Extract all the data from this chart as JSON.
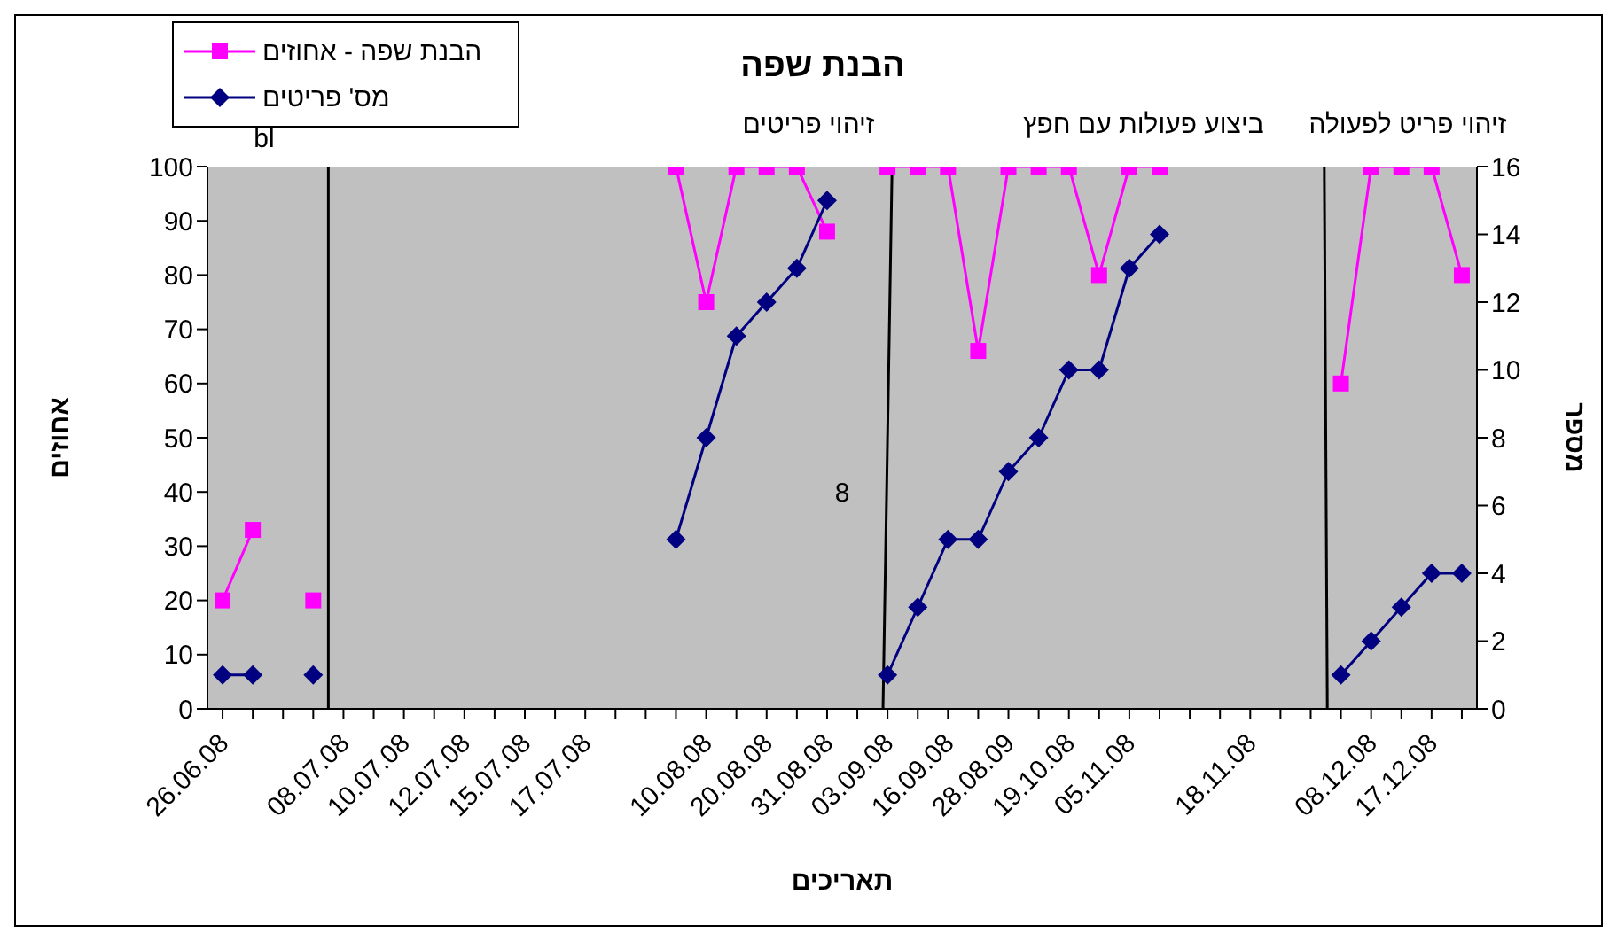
{
  "chart_data": {
    "type": "line",
    "title": "הבנת שפה",
    "xlabel": "תאריכים",
    "ylabel": "אחוזים",
    "y2label": "מספר",
    "categories": [
      "26.06.08",
      null,
      null,
      null,
      "08.07.08",
      null,
      "10.07.08",
      null,
      "12.07.08",
      null,
      "15.07.08",
      null,
      "17.07.08",
      null,
      null,
      null,
      "10.08.08",
      null,
      "20.08.08",
      null,
      "31.08.08",
      null,
      "03.09.08",
      null,
      "16.09.08",
      null,
      "28.08.09",
      null,
      "19.10.08",
      null,
      "05.11.08",
      null,
      null,
      null,
      "18.11.08",
      null,
      null,
      null,
      "08.12.08",
      null,
      "17.12.08",
      null
    ],
    "series": [
      {
        "name": "הבנת שפה - אחוזים",
        "color": "#ff00ff",
        "marker": "square",
        "values": [
          20,
          33,
          null,
          20,
          null,
          null,
          null,
          null,
          null,
          null,
          null,
          null,
          null,
          null,
          null,
          100,
          75,
          100,
          100,
          100,
          88,
          null,
          100,
          100,
          100,
          66,
          100,
          100,
          100,
          80,
          100,
          100,
          null,
          null,
          null,
          null,
          null,
          60,
          100,
          100,
          100,
          80
        ]
      },
      {
        "name": "מס' פריטים",
        "color": "#000080",
        "marker": "diamond",
        "axis": "y2",
        "values": [
          1,
          1,
          null,
          1,
          null,
          null,
          null,
          null,
          null,
          null,
          null,
          null,
          null,
          null,
          null,
          5,
          8,
          11,
          12,
          13,
          15,
          null,
          1,
          3,
          5,
          5,
          7,
          8,
          10,
          10,
          13,
          14,
          null,
          null,
          null,
          null,
          null,
          1,
          2,
          3,
          4,
          4
        ]
      }
    ],
    "ylim": [
      0,
      100
    ],
    "yticks": [
      0,
      10,
      20,
      30,
      40,
      50,
      60,
      70,
      80,
      90,
      100
    ],
    "y2lim": [
      0,
      16
    ],
    "y2ticks": [
      0,
      2,
      4,
      6,
      8,
      10,
      12,
      14,
      16
    ],
    "annotations": [
      "bl",
      "זיהוי פריטים",
      "ביצוע פעולות עם חפץ",
      "זיהוי פריט לפעולה",
      "8"
    ],
    "grid": false,
    "legend": "top left"
  }
}
